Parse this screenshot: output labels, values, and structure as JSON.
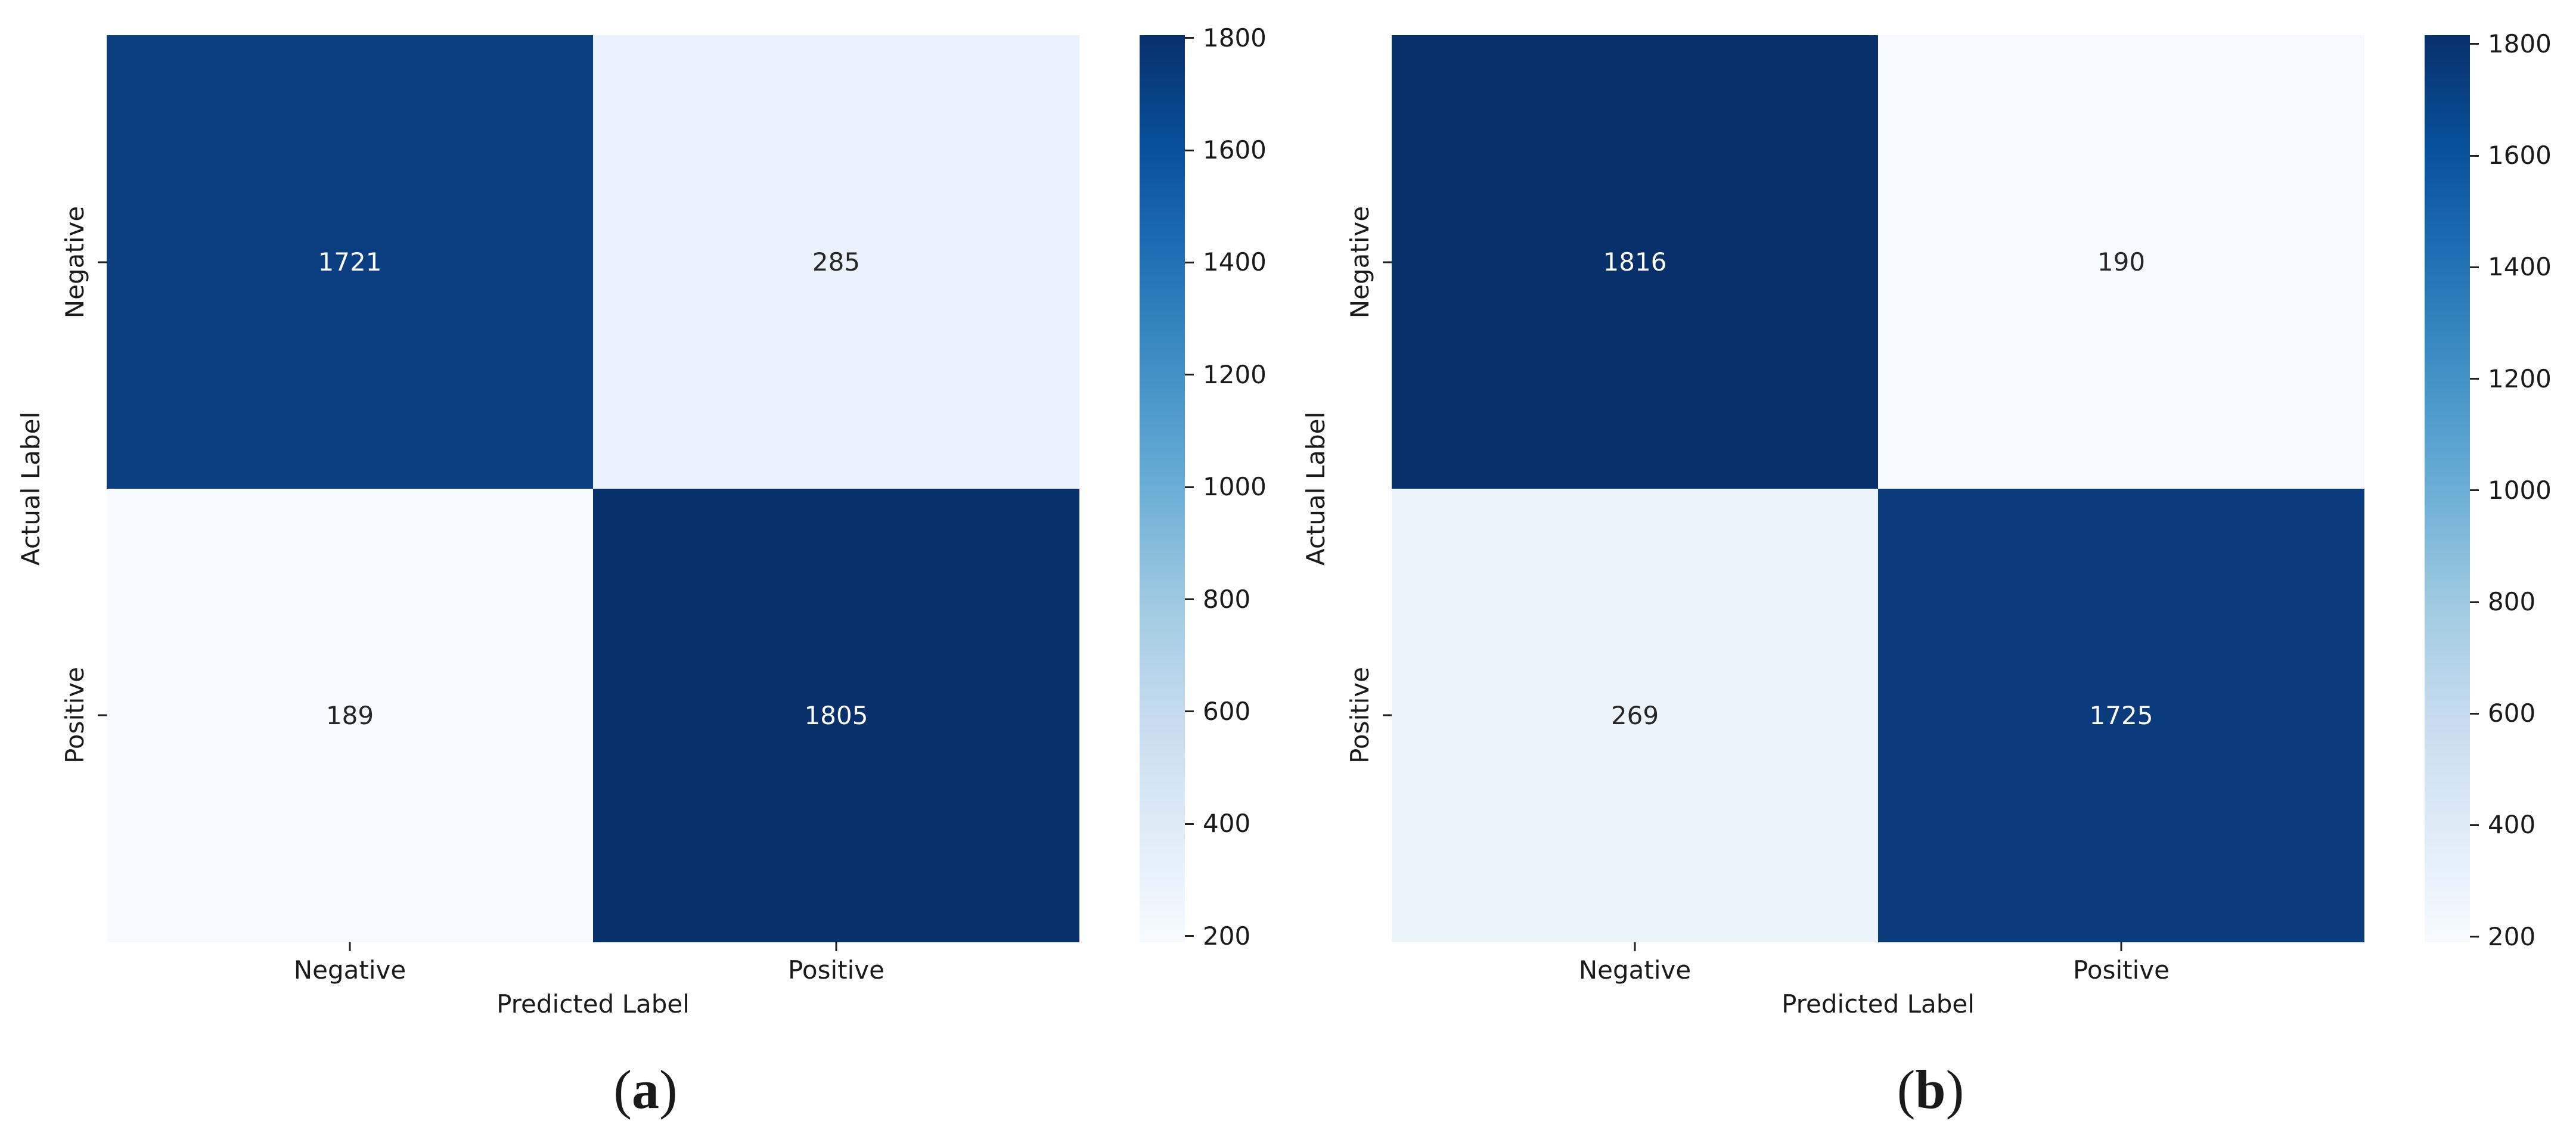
{
  "figure": {
    "background": "#ffffff",
    "panels": [
      {
        "caption": {
          "open": "(",
          "letter": "a",
          "close": ")"
        },
        "xlabel": "Predicted Label",
        "ylabel": "Actual Label",
        "x_tick_labels": [
          "Negative",
          "Positive"
        ],
        "y_tick_labels": [
          "Negative",
          "Positive"
        ],
        "cells": [
          {
            "value": "1721",
            "bg": "#0b3e80",
            "fg": "#ffffff"
          },
          {
            "value": "285",
            "bg": "#e9f2fa",
            "fg": "#262626"
          },
          {
            "value": "189",
            "bg": "#f7fbff",
            "fg": "#262626"
          },
          {
            "value": "1805",
            "bg": "#08306b",
            "fg": "#ffffff"
          }
        ],
        "colorbar": {
          "vmin": 189,
          "vmax": 1805,
          "ticks": [
            "1800",
            "1600",
            "1400",
            "1200",
            "1000",
            "800",
            "600",
            "400",
            "200"
          ]
        }
      },
      {
        "caption": {
          "open": "(",
          "letter": "b",
          "close": ")"
        },
        "xlabel": "Predicted Label",
        "ylabel": "Actual Label",
        "x_tick_labels": [
          "Negative",
          "Positive"
        ],
        "y_tick_labels": [
          "Negative",
          "Positive"
        ],
        "cells": [
          {
            "value": "1816",
            "bg": "#08306b",
            "fg": "#ffffff"
          },
          {
            "value": "190",
            "bg": "#f6fafe",
            "fg": "#262626"
          },
          {
            "value": "269",
            "bg": "#ecf4fb",
            "fg": "#262626"
          },
          {
            "value": "1725",
            "bg": "#0a3c7d",
            "fg": "#ffffff"
          }
        ],
        "colorbar": {
          "vmin": 190,
          "vmax": 1816,
          "ticks": [
            "1800",
            "1600",
            "1400",
            "1200",
            "1000",
            "800",
            "600",
            "400",
            "200"
          ]
        }
      }
    ]
  },
  "chart_data": [
    {
      "type": "heatmap",
      "title": "(a)",
      "xlabel": "Predicted Label",
      "ylabel": "Actual Label",
      "x_categories": [
        "Negative",
        "Positive"
      ],
      "y_categories": [
        "Negative",
        "Positive"
      ],
      "values": [
        [
          1721,
          285
        ],
        [
          189,
          1805
        ]
      ],
      "colormap": "Blues",
      "vmin": 189,
      "vmax": 1805,
      "colorbar_ticks": [
        200,
        400,
        600,
        800,
        1000,
        1200,
        1400,
        1600,
        1800
      ],
      "legend_position": "right-colorbar",
      "grid": false
    },
    {
      "type": "heatmap",
      "title": "(b)",
      "xlabel": "Predicted Label",
      "ylabel": "Actual Label",
      "x_categories": [
        "Negative",
        "Positive"
      ],
      "y_categories": [
        "Negative",
        "Positive"
      ],
      "values": [
        [
          1816,
          190
        ],
        [
          269,
          1725
        ]
      ],
      "colormap": "Blues",
      "vmin": 190,
      "vmax": 1816,
      "colorbar_ticks": [
        200,
        400,
        600,
        800,
        1000,
        1200,
        1400,
        1600,
        1800
      ],
      "legend_position": "right-colorbar",
      "grid": false
    }
  ]
}
